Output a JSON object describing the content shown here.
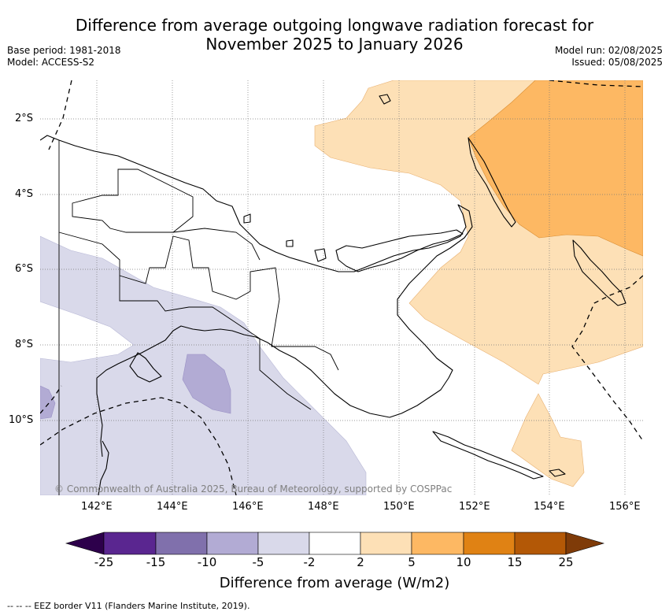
{
  "header": {
    "title_line1": "Difference from average outgoing longwave radiation forecast for",
    "title_line2": "November 2025 to January 2026",
    "base_period": "Base period: 1981-2018",
    "model": "Model: ACCESS-S2",
    "model_run": "Model run: 02/08/2025",
    "issued": "Issued: 05/08/2025"
  },
  "map": {
    "lat_ticks": [
      "2°S",
      "4°S",
      "6°S",
      "8°S",
      "10°S"
    ],
    "lon_ticks": [
      "142°E",
      "144°E",
      "146°E",
      "148°E",
      "150°E",
      "152°E",
      "154°E",
      "156°E"
    ],
    "copyright": "© Commonwealth of Australia 2025, Bureau of Meteorology, supported by COSPPac"
  },
  "colorbar": {
    "labels": [
      "-25",
      "-15",
      "-10",
      "-5",
      "-2",
      "2",
      "5",
      "10",
      "15",
      "25"
    ],
    "colors": [
      "#5a2690",
      "#8070ac",
      "#b2abd4",
      "#d9d9ea",
      "#ffffff",
      "#fde0b6",
      "#fdb863",
      "#e08214",
      "#b35806"
    ],
    "under_color": "#2d004b",
    "over_color": "#7f3b08",
    "title": "Difference from average (W/m2)"
  },
  "footnote": "--  --  -- EEZ border V11 (Flanders Marine Institute, 2019)."
}
